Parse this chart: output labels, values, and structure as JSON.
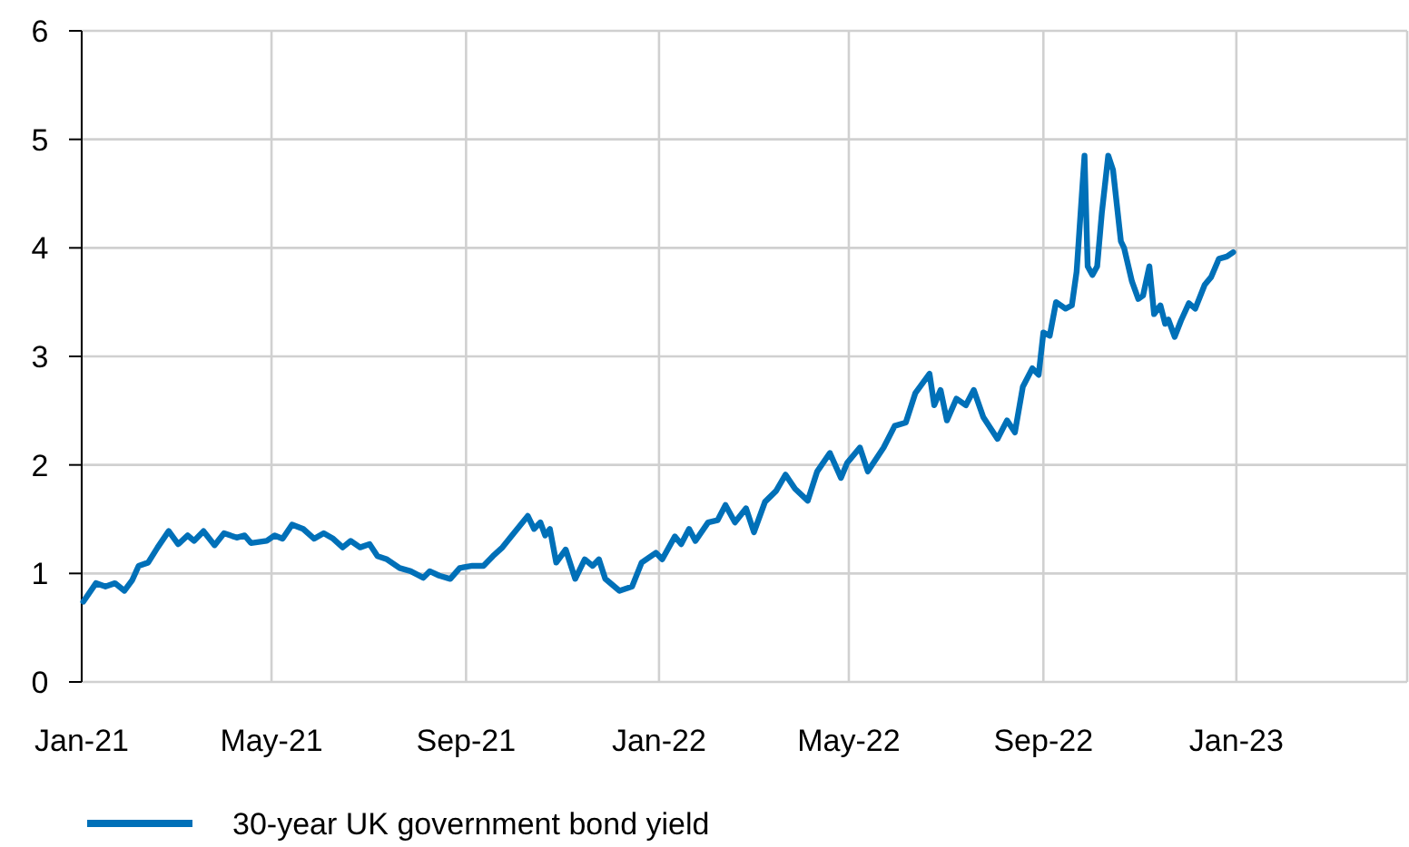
{
  "chart_data": {
    "type": "line",
    "xlim": [
      "2021-01-01",
      "2023-04-19"
    ],
    "ylim": [
      0,
      6
    ],
    "yticks": [
      0,
      1,
      2,
      3,
      4,
      5,
      6
    ],
    "xticks": [
      {
        "value": "2021-01-01",
        "label": "Jan-21"
      },
      {
        "value": "2021-05-01",
        "label": "May-21"
      },
      {
        "value": "2021-09-01",
        "label": "Sep-21"
      },
      {
        "value": "2022-01-01",
        "label": "Jan-22"
      },
      {
        "value": "2022-05-01",
        "label": "May-22"
      },
      {
        "value": "2022-09-01",
        "label": "Sep-22"
      },
      {
        "value": "2023-01-01",
        "label": "Jan-23"
      }
    ],
    "grid": true,
    "legend": "bottom",
    "marker": "none",
    "line_style": "solid",
    "x": [
      "2021-01-02",
      "2021-01-10",
      "2021-01-16",
      "2021-01-22",
      "2021-01-28",
      "2021-02-02",
      "2021-02-06",
      "2021-02-12",
      "2021-02-18",
      "2021-02-25",
      "2021-03-03",
      "2021-03-09",
      "2021-03-13",
      "2021-03-19",
      "2021-03-26",
      "2021-04-01",
      "2021-04-09",
      "2021-04-14",
      "2021-04-18",
      "2021-04-28",
      "2021-05-03",
      "2021-05-08",
      "2021-05-14",
      "2021-05-21",
      "2021-05-28",
      "2021-06-03",
      "2021-06-09",
      "2021-06-15",
      "2021-06-20",
      "2021-06-26",
      "2021-07-02",
      "2021-07-07",
      "2021-07-13",
      "2021-07-21",
      "2021-07-28",
      "2021-08-05",
      "2021-08-09",
      "2021-08-15",
      "2021-08-22",
      "2021-08-28",
      "2021-09-05",
      "2021-09-12",
      "2021-09-18",
      "2021-09-24",
      "2021-09-30",
      "2021-10-05",
      "2021-10-10",
      "2021-10-14",
      "2021-10-18",
      "2021-10-21",
      "2021-10-24",
      "2021-10-28",
      "2021-11-03",
      "2021-11-09",
      "2021-11-15",
      "2021-11-20",
      "2021-11-24",
      "2021-11-28",
      "2021-12-07",
      "2021-12-15",
      "2021-12-21",
      "2021-12-30",
      "2022-01-03",
      "2022-01-11",
      "2022-01-15",
      "2022-01-20",
      "2022-01-24",
      "2022-02-01",
      "2022-02-07",
      "2022-02-12",
      "2022-02-18",
      "2022-02-25",
      "2022-03-02",
      "2022-03-09",
      "2022-03-16",
      "2022-03-22",
      "2022-03-28",
      "2022-04-05",
      "2022-04-11",
      "2022-04-19",
      "2022-04-26",
      "2022-04-30",
      "2022-05-08",
      "2022-05-13",
      "2022-05-23",
      "2022-05-30",
      "2022-06-06",
      "2022-06-12",
      "2022-06-21",
      "2022-06-24",
      "2022-06-28",
      "2022-07-02",
      "2022-07-08",
      "2022-07-14",
      "2022-07-19",
      "2022-07-25",
      "2022-08-03",
      "2022-08-09",
      "2022-08-14",
      "2022-08-19",
      "2022-08-25",
      "2022-08-29",
      "2022-09-01",
      "2022-09-05",
      "2022-09-09",
      "2022-09-15",
      "2022-09-19",
      "2022-09-22",
      "2022-09-27",
      "2022-09-29",
      "2022-10-02",
      "2022-10-05",
      "2022-10-08",
      "2022-10-12",
      "2022-10-15",
      "2022-10-20",
      "2022-10-22",
      "2022-10-27",
      "2022-10-31",
      "2022-11-03",
      "2022-11-07",
      "2022-11-10",
      "2022-11-14",
      "2022-11-17",
      "2022-11-19",
      "2022-11-23",
      "2022-11-27",
      "2022-12-02",
      "2022-12-06",
      "2022-12-12",
      "2022-12-16",
      "2022-12-21",
      "2022-12-26",
      "2022-12-30"
    ],
    "series": [
      {
        "name": "30-year UK government bond yield",
        "color": "#0070b8",
        "values": [
          0.74,
          0.91,
          0.88,
          0.91,
          0.84,
          0.94,
          1.07,
          1.1,
          1.24,
          1.39,
          1.27,
          1.35,
          1.3,
          1.39,
          1.26,
          1.37,
          1.33,
          1.35,
          1.28,
          1.3,
          1.35,
          1.32,
          1.45,
          1.41,
          1.32,
          1.37,
          1.32,
          1.24,
          1.3,
          1.24,
          1.27,
          1.16,
          1.13,
          1.05,
          1.02,
          0.96,
          1.02,
          0.98,
          0.95,
          1.05,
          1.07,
          1.07,
          1.16,
          1.24,
          1.35,
          1.44,
          1.53,
          1.41,
          1.47,
          1.35,
          1.41,
          1.1,
          1.22,
          0.95,
          1.13,
          1.07,
          1.13,
          0.95,
          0.84,
          0.88,
          1.1,
          1.19,
          1.13,
          1.34,
          1.27,
          1.41,
          1.3,
          1.47,
          1.49,
          1.63,
          1.47,
          1.6,
          1.38,
          1.66,
          1.76,
          1.91,
          1.78,
          1.67,
          1.94,
          2.11,
          1.88,
          2.02,
          2.16,
          1.94,
          2.16,
          2.36,
          2.39,
          2.66,
          2.84,
          2.55,
          2.69,
          2.41,
          2.61,
          2.55,
          2.69,
          2.44,
          2.24,
          2.41,
          2.3,
          2.72,
          2.89,
          2.83,
          3.22,
          3.19,
          3.5,
          3.44,
          3.47,
          3.78,
          4.85,
          3.83,
          3.75,
          3.83,
          4.33,
          4.85,
          4.72,
          4.06,
          4.0,
          3.69,
          3.53,
          3.56,
          3.83,
          3.39,
          3.47,
          3.3,
          3.34,
          3.18,
          3.33,
          3.49,
          3.44,
          3.66,
          3.73,
          3.9,
          3.92,
          3.96
        ]
      }
    ]
  }
}
